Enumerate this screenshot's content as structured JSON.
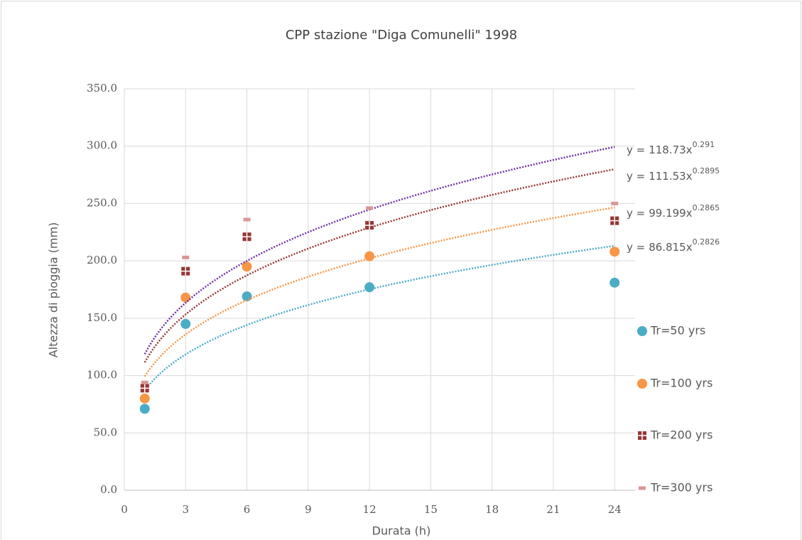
{
  "chart_data": {
    "type": "scatter",
    "title": "CPP stazione \"Diga Comunelli\" 1998",
    "xlabel": "Durata (h)",
    "ylabel": "Altezza di pioggia (mm)",
    "x": [
      1,
      3,
      6,
      12,
      24
    ],
    "xlim": [
      0,
      25
    ],
    "xticks": [
      0,
      3,
      6,
      9,
      12,
      15,
      18,
      21,
      24
    ],
    "ylim": [
      0,
      350
    ],
    "yticks": [
      {
        "value": 0,
        "label": "0.0"
      },
      {
        "value": 50,
        "label": "50.0"
      },
      {
        "value": 100,
        "label": "100.0"
      },
      {
        "value": 150,
        "label": "150.0"
      },
      {
        "value": 200,
        "label": "200.0"
      },
      {
        "value": 250,
        "label": "250.0"
      },
      {
        "value": 300,
        "label": "300.0"
      },
      {
        "value": 350,
        "label": "350.0"
      }
    ],
    "grid": true,
    "legend": "right",
    "trend_label": {
      "lhs": "y =",
      "var": "x"
    },
    "series": [
      {
        "name": "Tr=50 yrs",
        "color": "#4bacc6",
        "marker": "circle",
        "values": [
          71,
          145,
          169,
          177,
          181
        ],
        "trendline": {
          "color": "#4bacc6",
          "coefficient": 86.815,
          "exponent": 0.2826
        }
      },
      {
        "name": "Tr=100 yrs",
        "color": "#f79646",
        "marker": "circle",
        "values": [
          80,
          168,
          195,
          204,
          208
        ],
        "trendline": {
          "color": "#f79646",
          "coefficient": 99.199,
          "exponent": 0.2865
        }
      },
      {
        "name": "Tr=200 yrs",
        "color": "#953735",
        "marker": "square",
        "values": [
          89,
          191,
          221,
          231,
          235
        ],
        "trendline": {
          "color": "#953735",
          "coefficient": 111.53,
          "exponent": 0.2895
        }
      },
      {
        "name": "Tr=300 yrs",
        "color": "#d99694",
        "marker": "dash",
        "values": [
          94,
          203,
          236,
          246,
          250
        ],
        "trendline": {
          "color": "#7030a0",
          "coefficient": 118.73,
          "exponent": 0.291
        }
      }
    ]
  }
}
